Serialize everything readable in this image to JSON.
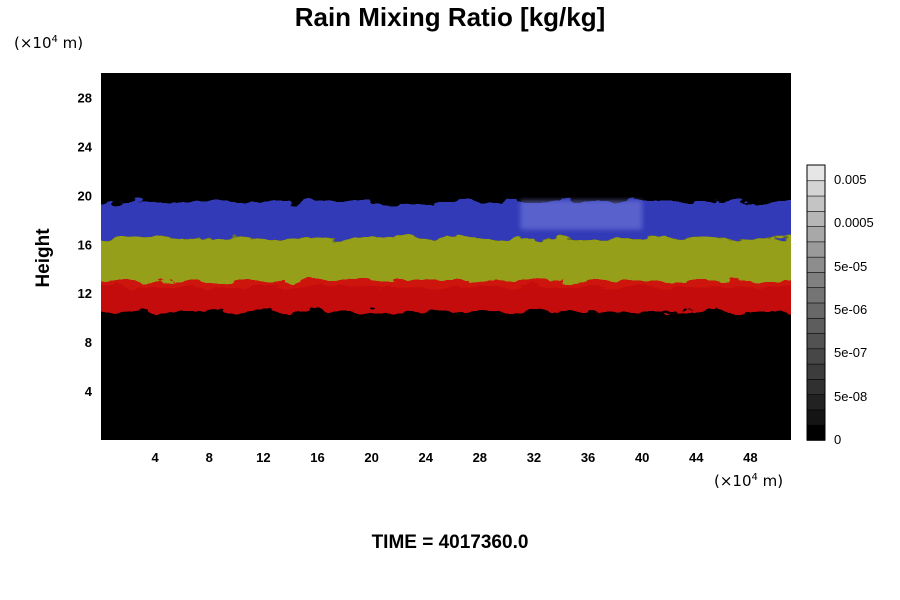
{
  "title": "Rain Mixing Ratio [kg/kg]",
  "y_unit": {
    "prefix": "(×10",
    "exp": "4",
    "suffix": " m)"
  },
  "x_unit": {
    "prefix": "(×10",
    "exp": "4",
    "suffix": " m)"
  },
  "time_label": "TIME = 4017360.0",
  "chart_data": {
    "type": "heatmap",
    "title": "Rain Mixing Ratio [kg/kg]",
    "xlabel": "(×10⁴ m)",
    "ylabel": "Height",
    "xlim": [
      0,
      51
    ],
    "ylim": [
      0,
      30
    ],
    "xticks": [
      4,
      8,
      12,
      16,
      20,
      24,
      28,
      32,
      36,
      40,
      44,
      48
    ],
    "yticks": [
      4,
      8,
      12,
      16,
      20,
      24,
      28
    ],
    "background": "#000000",
    "layers": [
      {
        "color": "#3a44d8",
        "y_range": [
          16.5,
          19.5
        ]
      },
      {
        "color": "#9fa81a",
        "y_range": [
          12.5,
          16.5
        ]
      },
      {
        "color": "#d01010",
        "y_range": [
          10.5,
          13.0
        ]
      }
    ],
    "colorbar": {
      "labels": [
        "0.005",
        "0.0005",
        "5e-05",
        "5e-06",
        "5e-07",
        "5e-08",
        "0"
      ],
      "colors": [
        "#000000",
        "#141414",
        "#222222",
        "#303030",
        "#3c3c3c",
        "#474747",
        "#525252",
        "#5d5d5d",
        "#686868",
        "#747474",
        "#808080",
        "#8d8d8d",
        "#9a9a9a",
        "#a8a8a8",
        "#b6b6b6",
        "#c4c4c4",
        "#d4d4d4",
        "#e6e6e6"
      ]
    }
  }
}
